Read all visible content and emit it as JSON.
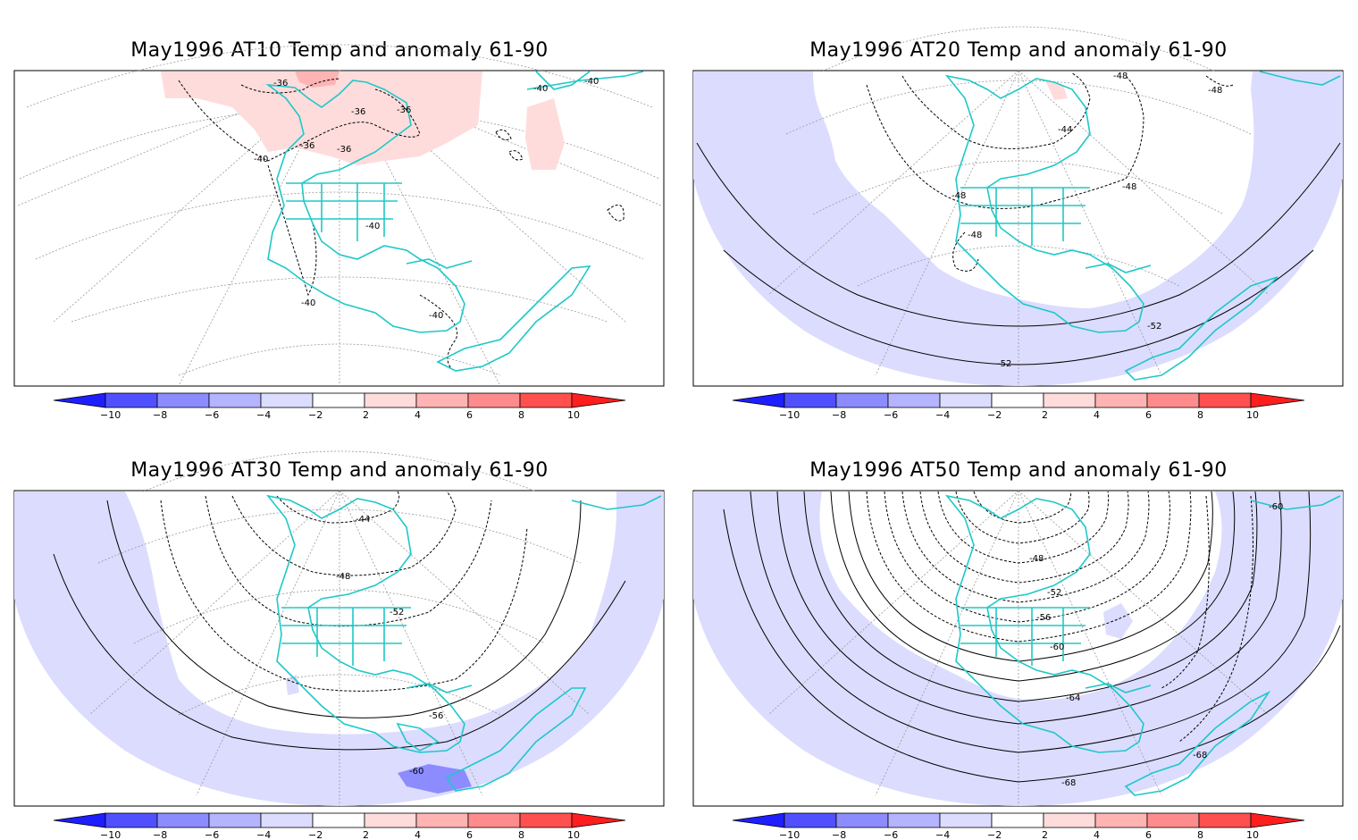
{
  "colorbar": {
    "ticks": [
      "−10",
      "−8",
      "−6",
      "−4",
      "−2",
      "2",
      "4",
      "6",
      "8",
      "10"
    ],
    "colors": [
      "#1e1eff",
      "#5050ff",
      "#8c8cff",
      "#b4b4ff",
      "#dcdcff",
      "#ffffff",
      "#ffdcdc",
      "#ffb4b4",
      "#ff8c8c",
      "#ff5050",
      "#ff1e1e"
    ]
  },
  "land_color": "#1ec8c8",
  "panels": [
    {
      "title": "May1996 AT10 Temp and anomaly 61-90",
      "labels": [
        "-36",
        "-36",
        "-36",
        "-36",
        "-36",
        "-40",
        "-40",
        "-40",
        "-40",
        "-40",
        "-40"
      ]
    },
    {
      "title": "May1996 AT20 Temp and anomaly 61-90",
      "labels": [
        "-48",
        "-48",
        "-44",
        "-48",
        "-48",
        "-48",
        "-52",
        "-52"
      ]
    },
    {
      "title": "May1996 AT30 Temp and anomaly 61-90",
      "labels": [
        "-44",
        "-48",
        "-52",
        "-56",
        "-60"
      ]
    },
    {
      "title": "May1996 AT50 Temp and anomaly 61-90",
      "labels": [
        "-60",
        "-48",
        "-52",
        "-56",
        "-60",
        "-64",
        "-68",
        "-68"
      ]
    }
  ]
}
